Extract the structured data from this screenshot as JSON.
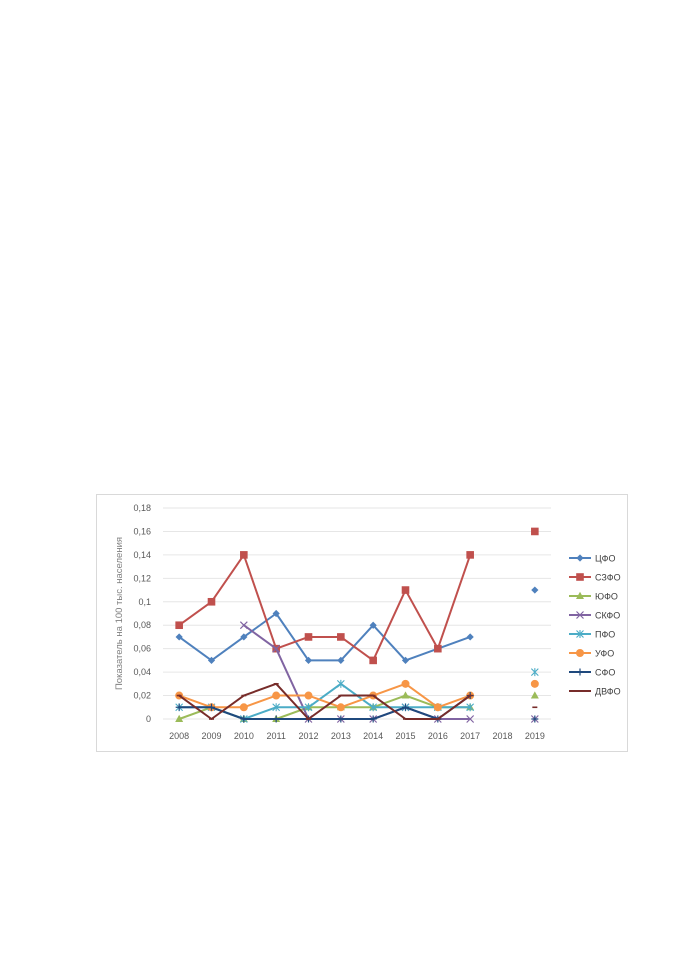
{
  "chart_data": {
    "type": "line",
    "ylabel": "Показатель на 100 тыс. населения",
    "categories": [
      "2008",
      "2009",
      "2010",
      "2011",
      "2012",
      "2013",
      "2014",
      "2015",
      "2016",
      "2017",
      "2018",
      "2019"
    ],
    "y_tick_labels": [
      "0",
      "0,02",
      "0,04",
      "0,06",
      "0,08",
      "0,1",
      "0,12",
      "0,14",
      "0,16",
      "0,18"
    ],
    "ylim": [
      0,
      0.18
    ],
    "grid": true,
    "legend": "right",
    "series": [
      {
        "name": "ЦФО",
        "color": "#4f81bd",
        "marker": "diamond",
        "values": [
          0.07,
          0.05,
          0.07,
          0.09,
          0.05,
          0.05,
          0.08,
          0.05,
          0.06,
          0.07,
          null,
          0.11
        ]
      },
      {
        "name": "СЗФО",
        "color": "#c0504d",
        "marker": "square",
        "values": [
          0.08,
          0.1,
          0.14,
          0.06,
          0.07,
          0.07,
          0.05,
          0.11,
          0.06,
          0.14,
          null,
          0.16
        ]
      },
      {
        "name": "ЮФО",
        "color": "#9bbb59",
        "marker": "triangle",
        "values": [
          0.0,
          0.01,
          0.0,
          0.0,
          0.01,
          0.01,
          0.01,
          0.02,
          0.01,
          0.01,
          null,
          0.02
        ]
      },
      {
        "name": "СКФО",
        "color": "#8064a2",
        "marker": "x",
        "values": [
          null,
          null,
          0.08,
          0.06,
          0.0,
          0.0,
          0.0,
          0.01,
          0.0,
          0.0,
          null,
          0.0
        ]
      },
      {
        "name": "ПФО",
        "color": "#4bacc6",
        "marker": "star",
        "values": [
          0.01,
          0.01,
          0.0,
          0.01,
          0.01,
          0.03,
          0.01,
          0.01,
          0.01,
          0.01,
          null,
          0.04
        ]
      },
      {
        "name": "УФО",
        "color": "#f79646",
        "marker": "circle",
        "values": [
          0.02,
          0.01,
          0.01,
          0.02,
          0.02,
          0.01,
          0.02,
          0.03,
          0.01,
          0.02,
          null,
          0.03
        ]
      },
      {
        "name": "СФО",
        "color": "#1f497d",
        "marker": "plus",
        "values": [
          0.01,
          0.01,
          0.0,
          0.0,
          0.0,
          0.0,
          0.0,
          0.01,
          0.0,
          0.02,
          null,
          0.0
        ]
      },
      {
        "name": "ДВФО",
        "color": "#772c2a",
        "marker": "dash",
        "values": [
          0.02,
          0.0,
          0.02,
          0.03,
          0.0,
          0.02,
          0.02,
          0.0,
          0.0,
          0.02,
          null,
          0.01
        ]
      }
    ]
  }
}
